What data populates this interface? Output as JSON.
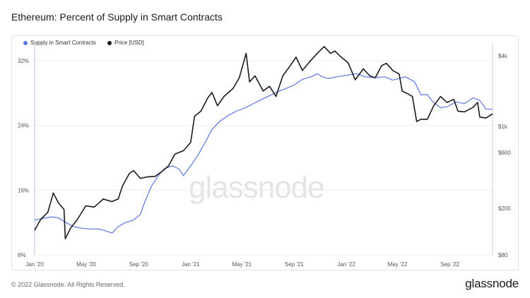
{
  "title": "Ethereum: Percent of Supply in Smart Contracts",
  "footer": "© 2022 Glassnode. All Rights Reserved.",
  "brand": "glassnode",
  "watermark": "glassnode",
  "chart_data": {
    "type": "line",
    "title": "Ethereum: Percent of Supply in Smart Contracts",
    "x_range": [
      "2020-01-01",
      "2022-12-10"
    ],
    "x_ticks": [
      {
        "date": "2020-01-01",
        "label": "Jan '20"
      },
      {
        "date": "2020-05-01",
        "label": "May '20"
      },
      {
        "date": "2020-09-01",
        "label": "Sep '20"
      },
      {
        "date": "2021-01-01",
        "label": "Jan '21"
      },
      {
        "date": "2021-05-01",
        "label": "May '21"
      },
      {
        "date": "2021-09-01",
        "label": "Sep '21"
      },
      {
        "date": "2022-01-01",
        "label": "Jan '22"
      },
      {
        "date": "2022-05-01",
        "label": "May '22"
      },
      {
        "date": "2022-09-01",
        "label": "Sep '22"
      }
    ],
    "left_axis": {
      "scale": "linear",
      "range": [
        8,
        34
      ],
      "ticks": [
        {
          "v": 8,
          "label": "8%"
        },
        {
          "v": 16,
          "label": "16%"
        },
        {
          "v": 24,
          "label": "24%"
        },
        {
          "v": 32,
          "label": "32%"
        }
      ]
    },
    "right_axis": {
      "scale": "log",
      "range": [
        80,
        5000
      ],
      "ticks": [
        {
          "v": 80,
          "label": "$80"
        },
        {
          "v": 200,
          "label": "$200"
        },
        {
          "v": 600,
          "label": "$600"
        },
        {
          "v": 1000,
          "label": "$1k"
        },
        {
          "v": 4000,
          "label": "$4k"
        }
      ]
    },
    "grid": true,
    "legend": "top-left",
    "series": [
      {
        "name": "Supply in Smart Contracts",
        "axis": "left",
        "color": "#5b76e0",
        "points": [
          [
            "2020-01-01",
            12.3
          ],
          [
            "2020-01-20",
            12.5
          ],
          [
            "2020-02-10",
            12.7
          ],
          [
            "2020-02-25",
            12.6
          ],
          [
            "2020-03-15",
            12.0
          ],
          [
            "2020-04-01",
            11.5
          ],
          [
            "2020-04-20",
            11.3
          ],
          [
            "2020-05-10",
            11.2
          ],
          [
            "2020-06-01",
            11.2
          ],
          [
            "2020-06-20",
            10.9
          ],
          [
            "2020-07-01",
            10.7
          ],
          [
            "2020-07-15",
            11.5
          ],
          [
            "2020-08-01",
            12.0
          ],
          [
            "2020-08-20",
            12.3
          ],
          [
            "2020-09-05",
            13.0
          ],
          [
            "2020-09-15",
            14.5
          ],
          [
            "2020-10-01",
            16.5
          ],
          [
            "2020-10-20",
            18.0
          ],
          [
            "2020-11-01",
            18.7
          ],
          [
            "2020-11-20",
            19.0
          ],
          [
            "2020-12-05",
            18.6
          ],
          [
            "2020-12-15",
            17.8
          ],
          [
            "2021-01-01",
            19.0
          ],
          [
            "2021-01-20",
            20.5
          ],
          [
            "2021-02-05",
            22.0
          ],
          [
            "2021-02-20",
            23.5
          ],
          [
            "2021-03-10",
            24.5
          ],
          [
            "2021-04-01",
            25.3
          ],
          [
            "2021-04-20",
            25.8
          ],
          [
            "2021-05-10",
            26.2
          ],
          [
            "2021-06-01",
            26.8
          ],
          [
            "2021-06-20",
            27.3
          ],
          [
            "2021-07-10",
            27.8
          ],
          [
            "2021-07-25",
            28.2
          ],
          [
            "2021-08-10",
            28.5
          ],
          [
            "2021-09-01",
            29.0
          ],
          [
            "2021-09-20",
            29.7
          ],
          [
            "2021-10-10",
            30.0
          ],
          [
            "2021-10-25",
            30.4
          ],
          [
            "2021-11-05",
            30.0
          ],
          [
            "2021-11-20",
            29.8
          ],
          [
            "2021-12-10",
            30.0
          ],
          [
            "2022-01-01",
            30.2
          ],
          [
            "2022-01-25",
            30.4
          ],
          [
            "2022-02-15",
            30.0
          ],
          [
            "2022-03-10",
            29.9
          ],
          [
            "2022-04-01",
            30.0
          ],
          [
            "2022-04-20",
            29.6
          ],
          [
            "2022-05-05",
            29.8
          ],
          [
            "2022-05-20",
            30.0
          ],
          [
            "2022-06-10",
            29.4
          ],
          [
            "2022-06-25",
            27.8
          ],
          [
            "2022-07-10",
            27.8
          ],
          [
            "2022-07-25",
            26.8
          ],
          [
            "2022-08-10",
            26.2
          ],
          [
            "2022-08-25",
            26.3
          ],
          [
            "2022-09-15",
            26.9
          ],
          [
            "2022-10-05",
            26.7
          ],
          [
            "2022-10-25",
            27.4
          ],
          [
            "2022-11-10",
            27.1
          ],
          [
            "2022-11-25",
            26.0
          ],
          [
            "2022-12-10",
            26.0
          ]
        ]
      },
      {
        "name": "Price [USD]",
        "axis": "right",
        "color": "#1a1a1a",
        "points": [
          [
            "2020-01-01",
            130
          ],
          [
            "2020-01-15",
            160
          ],
          [
            "2020-02-01",
            185
          ],
          [
            "2020-02-14",
            270
          ],
          [
            "2020-02-25",
            225
          ],
          [
            "2020-03-10",
            195
          ],
          [
            "2020-03-13",
            110
          ],
          [
            "2020-03-25",
            135
          ],
          [
            "2020-04-10",
            160
          ],
          [
            "2020-04-30",
            210
          ],
          [
            "2020-05-20",
            205
          ],
          [
            "2020-06-10",
            240
          ],
          [
            "2020-06-30",
            228
          ],
          [
            "2020-07-15",
            240
          ],
          [
            "2020-07-25",
            310
          ],
          [
            "2020-08-10",
            395
          ],
          [
            "2020-08-20",
            420
          ],
          [
            "2020-09-05",
            360
          ],
          [
            "2020-09-20",
            370
          ],
          [
            "2020-10-10",
            375
          ],
          [
            "2020-10-25",
            410
          ],
          [
            "2020-11-10",
            460
          ],
          [
            "2020-11-25",
            580
          ],
          [
            "2020-12-15",
            620
          ],
          [
            "2021-01-01",
            730
          ],
          [
            "2021-01-10",
            1220
          ],
          [
            "2021-01-25",
            1350
          ],
          [
            "2021-02-10",
            1750
          ],
          [
            "2021-02-20",
            1950
          ],
          [
            "2021-03-05",
            1500
          ],
          [
            "2021-03-20",
            1800
          ],
          [
            "2021-04-10",
            2100
          ],
          [
            "2021-04-25",
            2600
          ],
          [
            "2021-05-05",
            3500
          ],
          [
            "2021-05-11",
            4200
          ],
          [
            "2021-05-19",
            2400
          ],
          [
            "2021-06-01",
            2700
          ],
          [
            "2021-06-20",
            2000
          ],
          [
            "2021-07-05",
            2200
          ],
          [
            "2021-07-20",
            1800
          ],
          [
            "2021-08-05",
            2700
          ],
          [
            "2021-08-20",
            3200
          ],
          [
            "2021-09-05",
            3900
          ],
          [
            "2021-09-20",
            3000
          ],
          [
            "2021-10-05",
            3500
          ],
          [
            "2021-10-25",
            4200
          ],
          [
            "2021-11-10",
            4800
          ],
          [
            "2021-11-25",
            4200
          ],
          [
            "2021-12-05",
            4400
          ],
          [
            "2021-12-20",
            3900
          ],
          [
            "2022-01-05",
            3500
          ],
          [
            "2022-01-22",
            2500
          ],
          [
            "2022-02-10",
            3100
          ],
          [
            "2022-02-25",
            2700
          ],
          [
            "2022-03-10",
            2600
          ],
          [
            "2022-03-25",
            3300
          ],
          [
            "2022-04-05",
            3450
          ],
          [
            "2022-04-20",
            3000
          ],
          [
            "2022-05-05",
            2800
          ],
          [
            "2022-05-12",
            2000
          ],
          [
            "2022-05-25",
            1900
          ],
          [
            "2022-06-05",
            1800
          ],
          [
            "2022-06-15",
            1100
          ],
          [
            "2022-06-25",
            1150
          ],
          [
            "2022-07-10",
            1150
          ],
          [
            "2022-07-25",
            1500
          ],
          [
            "2022-08-10",
            1800
          ],
          [
            "2022-08-25",
            1600
          ],
          [
            "2022-09-10",
            1700
          ],
          [
            "2022-09-20",
            1350
          ],
          [
            "2022-10-05",
            1330
          ],
          [
            "2022-10-25",
            1450
          ],
          [
            "2022-11-05",
            1600
          ],
          [
            "2022-11-10",
            1200
          ],
          [
            "2022-11-25",
            1180
          ],
          [
            "2022-12-10",
            1280
          ]
        ]
      }
    ]
  }
}
